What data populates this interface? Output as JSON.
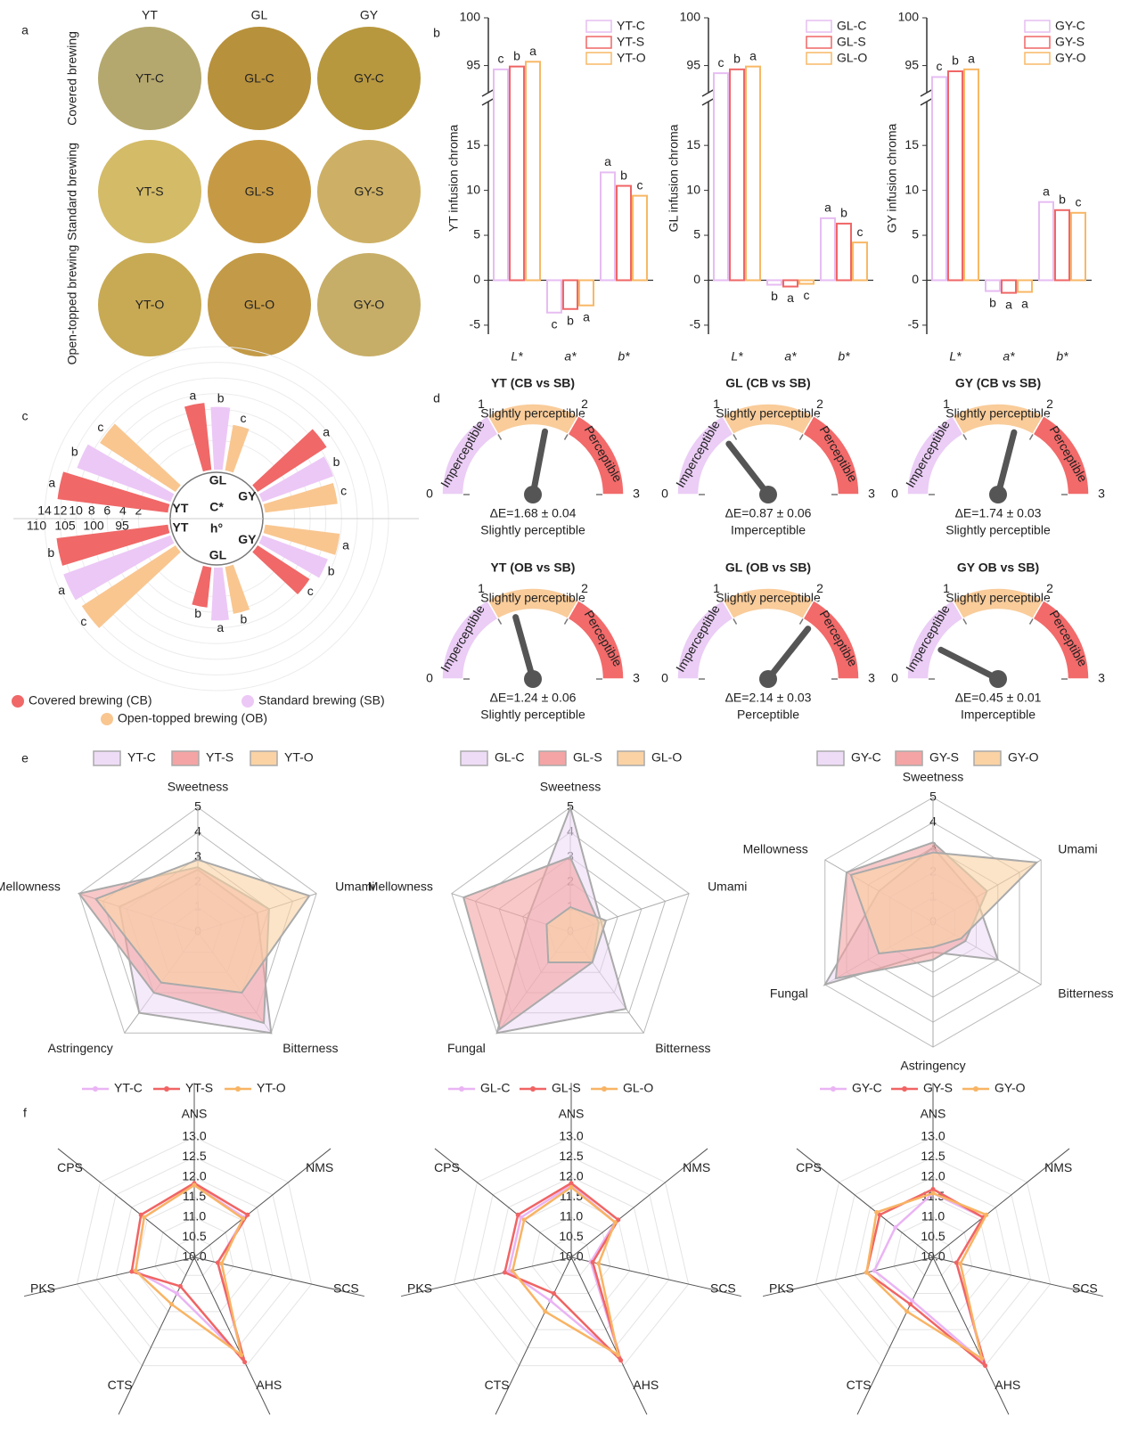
{
  "chart_data": [
    {
      "type": "swatches",
      "panel_label": "a",
      "columns": [
        "YT",
        "GL",
        "GY"
      ],
      "rows": [
        "Covered brewing",
        "Standard brewing",
        "Open-topped brewing"
      ],
      "cells": [
        [
          {
            "label": "YT-C",
            "color": "#b5a86e"
          },
          {
            "label": "GL-C",
            "color": "#b8913c"
          },
          {
            "label": "GY-C",
            "color": "#b8983f"
          }
        ],
        [
          {
            "label": "YT-S",
            "color": "#d4bb68"
          },
          {
            "label": "GL-S",
            "color": "#c69a45"
          },
          {
            "label": "GY-S",
            "color": "#cdb065"
          }
        ],
        [
          {
            "label": "YT-O",
            "color": "#c8aa55"
          },
          {
            "label": "GL-O",
            "color": "#c39a47"
          },
          {
            "label": "GY-O",
            "color": "#c7ae68"
          }
        ]
      ]
    },
    {
      "type": "bar",
      "panel_label": "b",
      "ylabel": "YT infusion chroma",
      "categories": [
        "L*",
        "a*",
        "b*"
      ],
      "series": [
        {
          "name": "YT-C",
          "color": "#e6bdf2",
          "values": [
            94.6,
            -3.6,
            12.0
          ],
          "letters": [
            "c",
            "c",
            "a"
          ]
        },
        {
          "name": "YT-S",
          "color": "#f06666",
          "values": [
            94.9,
            -3.2,
            10.5
          ],
          "letters": [
            "b",
            "b",
            "b"
          ]
        },
        {
          "name": "YT-O",
          "color": "#f8b866",
          "values": [
            95.4,
            -2.8,
            9.4
          ],
          "letters": [
            "a",
            "a",
            "c"
          ]
        }
      ],
      "ylim": [
        -6,
        100
      ],
      "yticks": [
        -5,
        0,
        5,
        10,
        15,
        95,
        100
      ],
      "axis_break": [
        17,
        93
      ]
    },
    {
      "type": "bar",
      "ylabel": "GL infusion chroma",
      "categories": [
        "L*",
        "a*",
        "b*"
      ],
      "series": [
        {
          "name": "GL-C",
          "color": "#e6bdf2",
          "values": [
            94.2,
            -0.5,
            6.9
          ],
          "letters": [
            "c",
            "b",
            "a"
          ]
        },
        {
          "name": "GL-S",
          "color": "#f06666",
          "values": [
            94.6,
            -0.7,
            6.3
          ],
          "letters": [
            "b",
            "a",
            "b"
          ]
        },
        {
          "name": "GL-O",
          "color": "#f8b866",
          "values": [
            94.9,
            -0.4,
            4.2
          ],
          "letters": [
            "a",
            "c",
            "c"
          ]
        }
      ],
      "ylim": [
        -6,
        100
      ],
      "yticks": [
        -5,
        0,
        5,
        10,
        15,
        95,
        100
      ],
      "axis_break": [
        17,
        93
      ]
    },
    {
      "type": "bar",
      "ylabel": "GY infusion chroma",
      "categories": [
        "L*",
        "a*",
        "b*"
      ],
      "series": [
        {
          "name": "GY-C",
          "color": "#e6bdf2",
          "values": [
            93.8,
            -1.2,
            8.7
          ],
          "letters": [
            "c",
            "b",
            "a"
          ]
        },
        {
          "name": "GY-S",
          "color": "#f06666",
          "values": [
            94.4,
            -1.4,
            7.8
          ],
          "letters": [
            "b",
            "a",
            "b"
          ]
        },
        {
          "name": "GY-O",
          "color": "#f8b866",
          "values": [
            94.6,
            -1.3,
            7.5
          ],
          "letters": [
            "a",
            "a",
            "c"
          ]
        }
      ],
      "ylim": [
        -6,
        100
      ],
      "yticks": [
        -5,
        0,
        5,
        10,
        15,
        95,
        100
      ],
      "axis_break": [
        17,
        93
      ]
    },
    {
      "type": "polar_bar",
      "panel_label": "c",
      "groups": [
        "YT",
        "GL",
        "GY"
      ],
      "rlabel": "C*",
      "rlim": [
        0,
        14
      ],
      "rticks": [
        2,
        4,
        6,
        8,
        10,
        12,
        14
      ],
      "r2label": "h°",
      "r2lim": [
        95,
        110
      ],
      "r2ticks": [
        95,
        100,
        105,
        110
      ],
      "series": [
        {
          "name": "Covered brewing (CB)",
          "color": "#f06868",
          "values": [
            12.5,
            6.9,
            8.8
          ],
          "letters": [
            "a",
            "a",
            "a"
          ],
          "values2": [
            106.7,
            94.1,
            97.9
          ],
          "letters2": [
            "b",
            "b",
            "c"
          ]
        },
        {
          "name": "Standard brewing (SB)",
          "color": "#ecc8f6",
          "values": [
            11.0,
            6.3,
            7.9
          ],
          "letters": [
            "b",
            "b",
            "b"
          ],
          "values2": [
            107.0,
            96.3,
            99.2
          ],
          "letters2": [
            "a",
            "a",
            "b"
          ]
        },
        {
          "name": "Open-topped brewing (OB)",
          "color": "#f9c690",
          "values": [
            9.8,
            4.2,
            7.6
          ],
          "letters": [
            "c",
            "c",
            "c"
          ],
          "values2": [
            106.6,
            95.4,
            100.2
          ],
          "letters2": [
            "c",
            "b",
            "a"
          ]
        }
      ]
    },
    {
      "type": "gauge",
      "panel_label": "d",
      "zones": [
        "Imperceptible",
        "Slightly perceptible",
        "Perceptible"
      ],
      "zone_colors": [
        "#ebcdf6",
        "#f9cc9a",
        "#f26a6a"
      ],
      "lim": [
        0,
        3
      ],
      "ticks": [
        0,
        1,
        2,
        3
      ],
      "gauges": [
        {
          "title": "YT (CB vs SB)",
          "value": 1.68,
          "error": 0.04,
          "value_label": "ΔE=1.68 ± 0.04",
          "category": "Slightly perceptible"
        },
        {
          "title": "GL (CB vs SB)",
          "value": 0.87,
          "error": 0.06,
          "value_label": "ΔE=0.87 ± 0.06",
          "category": "Imperceptible"
        },
        {
          "title": "GY (CB vs SB)",
          "value": 1.74,
          "error": 0.03,
          "value_label": "ΔE=1.74 ± 0.03",
          "category": "Slightly perceptible"
        },
        {
          "title": "YT (OB vs SB)",
          "value": 1.24,
          "error": 0.06,
          "value_label": "ΔE=1.24 ± 0.06",
          "category": "Slightly perceptible"
        },
        {
          "title": "GL (OB vs SB)",
          "value": 2.14,
          "error": 0.03,
          "value_label": "ΔE=2.14 ± 0.03",
          "category": "Perceptible"
        },
        {
          "title": "GY OB vs SB)",
          "value": 0.45,
          "error": 0.01,
          "value_label": "ΔE=0.45 ± 0.01",
          "category": "Imperceptible"
        }
      ]
    },
    {
      "type": "radar",
      "style": "area",
      "panel_label": "e",
      "axes": [
        "Sweetness",
        "Umami",
        "Bitterness",
        "Astringency",
        "Mellowness"
      ],
      "rlim": [
        0,
        5
      ],
      "rticks": [
        0,
        1,
        2,
        3,
        4,
        5
      ],
      "series": [
        {
          "name": "YT-C",
          "color": "#eedcf6",
          "values": [
            2.5,
            2.5,
            5.0,
            4.0,
            3.3
          ]
        },
        {
          "name": "YT-S",
          "color": "#f4a4a4",
          "values": [
            2.6,
            3.0,
            4.5,
            3.0,
            5.0
          ]
        },
        {
          "name": "YT-O",
          "color": "#fad2a4",
          "values": [
            2.9,
            4.7,
            3.0,
            2.5,
            4.3
          ]
        }
      ]
    },
    {
      "type": "radar",
      "style": "area",
      "axes": [
        "Sweetness",
        "Umami",
        "Bitterness",
        "Fungal",
        "Mellowness"
      ],
      "rlim": [
        0,
        5
      ],
      "rticks": [
        0,
        1,
        2,
        3,
        4,
        5
      ],
      "series": [
        {
          "name": "GL-C",
          "color": "#eedcf6",
          "values": [
            5.0,
            1.3,
            3.8,
            5.0,
            1.8
          ]
        },
        {
          "name": "GL-S",
          "color": "#f4a4a4",
          "values": [
            3.0,
            1.2,
            1.5,
            4.8,
            4.5
          ]
        },
        {
          "name": "GL-O",
          "color": "#fad2a4",
          "values": [
            1.0,
            1.5,
            1.5,
            1.5,
            1.0
          ]
        }
      ]
    },
    {
      "type": "radar",
      "style": "area",
      "axes": [
        "Sweetness",
        "Umami",
        "Bitterness",
        "Astringency",
        "Fungal",
        "Mellowness"
      ],
      "rlim": [
        0,
        5
      ],
      "rticks": [
        0,
        1,
        2,
        3,
        4,
        5
      ],
      "series": [
        {
          "name": "GY-C",
          "color": "#eedcf6",
          "values": [
            3.0,
            2.0,
            3.0,
            1.2,
            5.0,
            2.5
          ]
        },
        {
          "name": "GY-S",
          "color": "#f4a4a4",
          "values": [
            3.2,
            2.5,
            1.5,
            1.5,
            4.5,
            4.0
          ]
        },
        {
          "name": "GY-O",
          "color": "#fad2a4",
          "values": [
            2.8,
            4.8,
            1.3,
            1.0,
            2.5,
            3.8
          ]
        }
      ]
    },
    {
      "type": "radar",
      "style": "line",
      "panel_label": "f",
      "axes": [
        "ANS",
        "NMS",
        "SCS",
        "AHS",
        "CTS",
        "PKS",
        "CPS"
      ],
      "rlim": [
        10,
        13
      ],
      "rticks": [
        {
          "value": 10,
          "label": "10.0"
        },
        10.5,
        {
          "value": 11,
          "label": "11.0"
        },
        11.5,
        {
          "value": 12,
          "label": "12.0"
        },
        12.5,
        {
          "value": 13,
          "label": "13.0"
        }
      ],
      "series": [
        {
          "name": "YT-C",
          "color": "#eab4f4",
          "values": [
            11.8,
            11.6,
            10.6,
            12.8,
            11.0,
            11.5,
            11.6
          ]
        },
        {
          "name": "YT-S",
          "color": "#f06464",
          "values": [
            11.85,
            11.7,
            10.6,
            12.9,
            10.8,
            11.6,
            11.7
          ]
        },
        {
          "name": "YT-O",
          "color": "#f8b464",
          "values": [
            11.8,
            11.55,
            10.7,
            12.7,
            11.3,
            11.5,
            11.6
          ]
        }
      ]
    },
    {
      "type": "radar",
      "style": "line",
      "axes": [
        "ANS",
        "NMS",
        "SCS",
        "AHS",
        "CTS",
        "PKS",
        "CPS"
      ],
      "rlim": [
        10,
        13
      ],
      "rticks": [
        {
          "value": 10,
          "label": "10.0"
        },
        10.5,
        {
          "value": 11,
          "label": "11.0"
        },
        11.5,
        {
          "value": 12,
          "label": "12.0"
        },
        12.5,
        {
          "value": 13,
          "label": "13.0"
        }
      ],
      "series": [
        {
          "name": "GL-C",
          "color": "#eab4f4",
          "values": [
            11.8,
            11.4,
            10.5,
            12.8,
            11.2,
            11.6,
            11.6
          ]
        },
        {
          "name": "GL-S",
          "color": "#f06464",
          "values": [
            11.85,
            11.5,
            10.55,
            12.85,
            11.0,
            11.7,
            11.7
          ]
        },
        {
          "name": "GL-O",
          "color": "#f8b464",
          "values": [
            11.75,
            11.4,
            10.7,
            12.7,
            11.5,
            11.5,
            11.5
          ]
        }
      ]
    },
    {
      "type": "radar",
      "style": "line",
      "axes": [
        "ANS",
        "NMS",
        "SCS",
        "AHS",
        "CTS",
        "PKS",
        "CPS"
      ],
      "rlim": [
        10,
        13
      ],
      "rticks": [
        {
          "value": 10,
          "label": "10.0"
        },
        10.5,
        {
          "value": 11,
          "label": "11.0"
        },
        11.5,
        {
          "value": 12,
          "label": "12.0"
        },
        12.5,
        {
          "value": 13,
          "label": "13.0"
        }
      ],
      "series": [
        {
          "name": "GY-C",
          "color": "#eab4f4",
          "values": [
            11.6,
            11.6,
            10.6,
            12.9,
            11.2,
            11.5,
            11.2
          ]
        },
        {
          "name": "GY-S",
          "color": "#f06464",
          "values": [
            11.7,
            11.6,
            10.6,
            13.0,
            11.3,
            11.7,
            11.7
          ]
        },
        {
          "name": "GY-O",
          "color": "#f8b464",
          "values": [
            11.6,
            11.7,
            10.7,
            12.8,
            11.5,
            11.7,
            11.8
          ]
        }
      ]
    }
  ]
}
